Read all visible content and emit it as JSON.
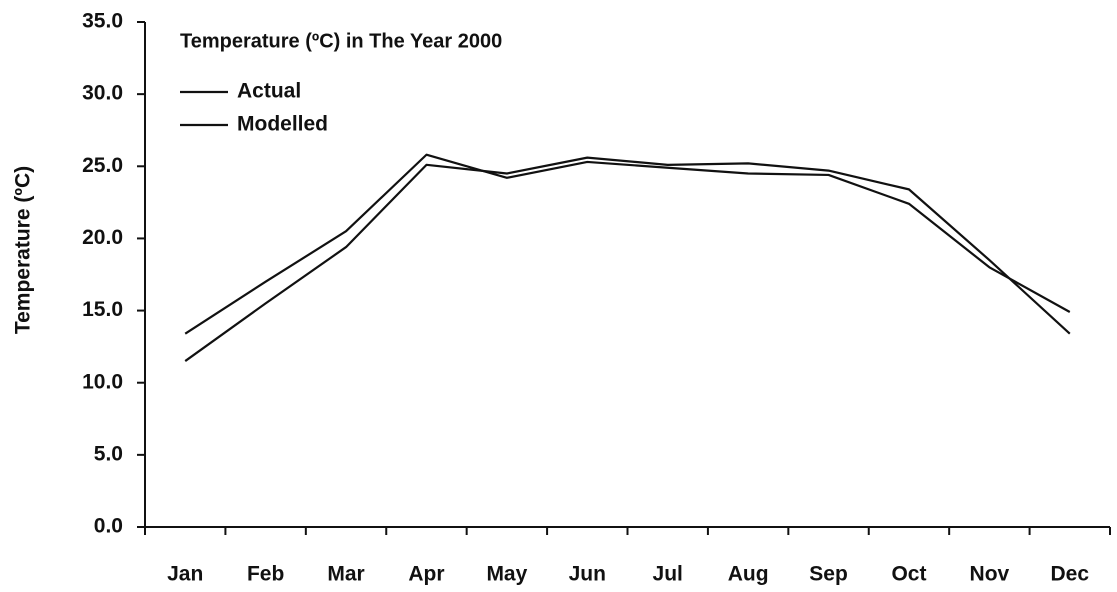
{
  "chart_data": {
    "type": "line",
    "title": "Temperature (ºC) in The Year 2000",
    "y_label": "Temperature (ºC)",
    "categories": [
      "Jan",
      "Feb",
      "Mar",
      "Apr",
      "May",
      "Jun",
      "Jul",
      "Aug",
      "Sep",
      "Oct",
      "Nov",
      "Dec"
    ],
    "series": [
      {
        "name": "Actual",
        "color": "#111111",
        "values": [
          13.4,
          17.0,
          20.5,
          25.8,
          24.2,
          25.3,
          24.9,
          24.5,
          24.4,
          22.4,
          18.0,
          14.9
        ]
      },
      {
        "name": "Modelled",
        "color": "#111111",
        "values": [
          11.5,
          15.5,
          19.4,
          25.1,
          24.5,
          25.6,
          25.1,
          25.2,
          24.7,
          23.4,
          18.5,
          13.4
        ]
      }
    ],
    "ylim": [
      0,
      35
    ],
    "yticks": [
      {
        "value": 0,
        "label": "0.0"
      },
      {
        "value": 5,
        "label": "5.0"
      },
      {
        "value": 10,
        "label": "10.0"
      },
      {
        "value": 15,
        "label": "15.0"
      },
      {
        "value": 20,
        "label": "20.0"
      },
      {
        "value": 25,
        "label": "25.0"
      },
      {
        "value": 30,
        "label": "30.0"
      },
      {
        "value": 35,
        "label": "35.0"
      }
    ],
    "grid": false,
    "legend": "top-left"
  }
}
